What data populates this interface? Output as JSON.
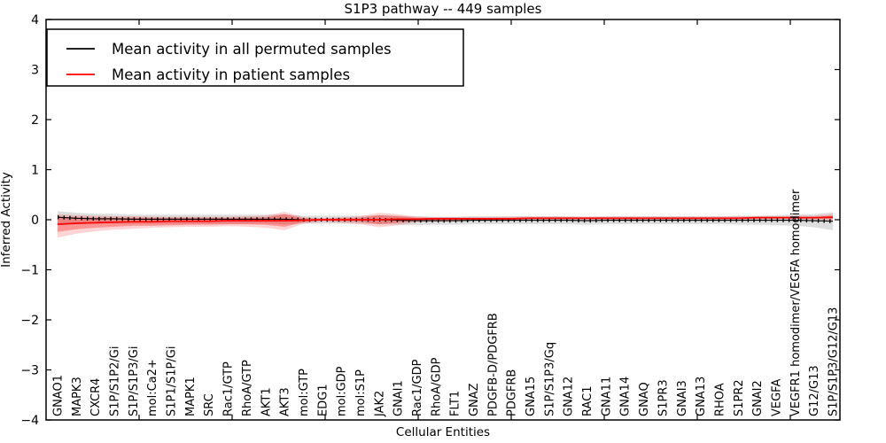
{
  "chart_data": {
    "type": "line",
    "title": "S1P3 pathway -- 449 samples",
    "xlabel": "Cellular Entities",
    "ylabel": "Inferred Activity",
    "ylim": [
      -4,
      4
    ],
    "yticks": [
      4,
      3,
      2,
      1,
      0,
      -1,
      -2,
      -3,
      -4
    ],
    "ytick_labels": [
      "4",
      "3",
      "2",
      "1",
      "0",
      "−1",
      "−2",
      "−3",
      "−4"
    ],
    "grid": false,
    "legend_position": "upper left",
    "categories": [
      "GNAO1",
      "MAPK3",
      "CXCR4",
      "S1P/S1P2/Gi",
      "S1P/S1P3/Gi",
      "mol:Ca2+",
      "S1P1/S1P/Gi",
      "MAPK1",
      "SRC",
      "Rac1/GTP",
      "RhoA/GTP",
      "AKT1",
      "AKT3",
      "mol:GTP",
      "EDG1",
      "mol:GDP",
      "mol:S1P",
      "JAK2",
      "GNAI1",
      "Rac1/GDP",
      "RhoA/GDP",
      "FLT1",
      "GNAZ",
      "PDGFB-D/PDGFRB",
      "PDGFRB",
      "GNA15",
      "S1P/S1P3/Gq",
      "GNA12",
      "RAC1",
      "GNA11",
      "GNA14",
      "GNAQ",
      "S1PR3",
      "GNAI3",
      "GNA13",
      "RHOA",
      "S1PR2",
      "GNAI2",
      "VEGFA",
      "VEGFR1 homodimer/VEGFA homodimer",
      "G12/G13",
      "S1P/S1P3/G12/G13"
    ],
    "series": [
      {
        "name": "Mean activity in all permuted samples",
        "color": "#000000",
        "style": "solid-with-tick-markers",
        "values": [
          0.05,
          0.03,
          0.02,
          0.02,
          0.01,
          0.01,
          0.01,
          0.01,
          0.01,
          0.01,
          0.01,
          0.01,
          0.01,
          0.0,
          0.0,
          0.0,
          0.0,
          0.0,
          -0.01,
          -0.02,
          -0.02,
          -0.02,
          -0.01,
          -0.01,
          -0.01,
          -0.01,
          -0.01,
          -0.01,
          -0.02,
          -0.01,
          -0.01,
          -0.01,
          -0.01,
          -0.01,
          -0.01,
          -0.01,
          -0.01,
          -0.01,
          -0.01,
          -0.01,
          -0.02,
          -0.03
        ]
      },
      {
        "name": "Mean activity in patient samples",
        "color": "#ff0000",
        "style": "solid",
        "values": [
          -0.09,
          -0.07,
          -0.06,
          -0.05,
          -0.04,
          -0.04,
          -0.03,
          -0.03,
          -0.03,
          -0.02,
          -0.02,
          -0.02,
          -0.02,
          -0.01,
          0.0,
          0.0,
          0.0,
          0.0,
          0.01,
          0.01,
          0.02,
          0.02,
          0.02,
          0.02,
          0.02,
          0.03,
          0.03,
          0.03,
          0.03,
          0.03,
          0.03,
          0.03,
          0.03,
          0.03,
          0.03,
          0.03,
          0.03,
          0.04,
          0.04,
          0.04,
          0.04,
          0.05
        ]
      }
    ],
    "bands": [
      {
        "name": "permuted-std-band",
        "color": "#999999",
        "opacity": 0.32,
        "upper": [
          0.17,
          0.14,
          0.12,
          0.12,
          0.1,
          0.1,
          0.1,
          0.1,
          0.1,
          0.1,
          0.1,
          0.1,
          0.11,
          0.08,
          0.08,
          0.08,
          0.08,
          0.09,
          0.08,
          0.07,
          0.06,
          0.06,
          0.07,
          0.07,
          0.07,
          0.07,
          0.07,
          0.07,
          0.06,
          0.07,
          0.07,
          0.07,
          0.07,
          0.07,
          0.07,
          0.07,
          0.08,
          0.08,
          0.09,
          0.1,
          0.11,
          0.15
        ],
        "lower": [
          -0.07,
          -0.08,
          -0.08,
          -0.08,
          -0.08,
          -0.08,
          -0.08,
          -0.08,
          -0.08,
          -0.08,
          -0.08,
          -0.08,
          -0.09,
          -0.08,
          -0.08,
          -0.08,
          -0.08,
          -0.09,
          -0.1,
          -0.11,
          -0.1,
          -0.1,
          -0.09,
          -0.09,
          -0.09,
          -0.09,
          -0.09,
          -0.09,
          -0.1,
          -0.09,
          -0.09,
          -0.09,
          -0.09,
          -0.09,
          -0.09,
          -0.09,
          -0.1,
          -0.1,
          -0.11,
          -0.12,
          -0.15,
          -0.21
        ]
      },
      {
        "name": "patient-outer-band",
        "color": "#ff0000",
        "opacity": 0.17,
        "upper": [
          0.11,
          0.09,
          0.08,
          0.07,
          0.07,
          0.06,
          0.06,
          0.06,
          0.06,
          0.06,
          0.07,
          0.08,
          0.16,
          0.05,
          0.03,
          0.05,
          0.07,
          0.14,
          0.11,
          0.06,
          0.05,
          0.05,
          0.05,
          0.05,
          0.06,
          0.06,
          0.06,
          0.06,
          0.06,
          0.06,
          0.06,
          0.06,
          0.06,
          0.06,
          0.06,
          0.06,
          0.07,
          0.07,
          0.07,
          0.08,
          0.08,
          0.11
        ],
        "lower": [
          -0.36,
          -0.28,
          -0.23,
          -0.2,
          -0.18,
          -0.16,
          -0.15,
          -0.14,
          -0.14,
          -0.13,
          -0.14,
          -0.16,
          -0.21,
          -0.08,
          -0.04,
          -0.06,
          -0.09,
          -0.15,
          -0.11,
          -0.05,
          -0.04,
          -0.03,
          -0.02,
          -0.02,
          -0.02,
          -0.01,
          -0.01,
          -0.01,
          -0.01,
          0.0,
          0.0,
          0.0,
          0.0,
          0.0,
          0.0,
          0.0,
          0.0,
          0.0,
          0.01,
          0.01,
          0.0,
          -0.02
        ]
      },
      {
        "name": "patient-inner-band",
        "color": "#ff0000",
        "opacity": 0.3,
        "upper": [
          0.06,
          0.05,
          0.04,
          0.04,
          0.04,
          0.04,
          0.04,
          0.04,
          0.04,
          0.04,
          0.04,
          0.05,
          0.11,
          0.03,
          0.02,
          0.03,
          0.04,
          0.09,
          0.07,
          0.04,
          0.04,
          0.04,
          0.04,
          0.04,
          0.04,
          0.05,
          0.05,
          0.05,
          0.05,
          0.05,
          0.05,
          0.05,
          0.05,
          0.05,
          0.05,
          0.05,
          0.05,
          0.06,
          0.06,
          0.06,
          0.06,
          0.08
        ],
        "lower": [
          -0.24,
          -0.19,
          -0.16,
          -0.14,
          -0.12,
          -0.12,
          -0.11,
          -0.1,
          -0.1,
          -0.09,
          -0.09,
          -0.1,
          -0.14,
          -0.05,
          -0.02,
          -0.03,
          -0.04,
          -0.09,
          -0.06,
          -0.02,
          -0.01,
          -0.01,
          0.0,
          0.0,
          0.0,
          0.01,
          0.01,
          0.01,
          0.01,
          0.01,
          0.01,
          0.01,
          0.01,
          0.01,
          0.01,
          0.01,
          0.01,
          0.02,
          0.02,
          0.02,
          0.02,
          0.01
        ]
      }
    ],
    "legend": {
      "entries": [
        {
          "label": "Mean activity in all permuted samples",
          "color": "#000000"
        },
        {
          "label": "Mean activity in patient samples",
          "color": "#ff0000"
        }
      ]
    }
  }
}
